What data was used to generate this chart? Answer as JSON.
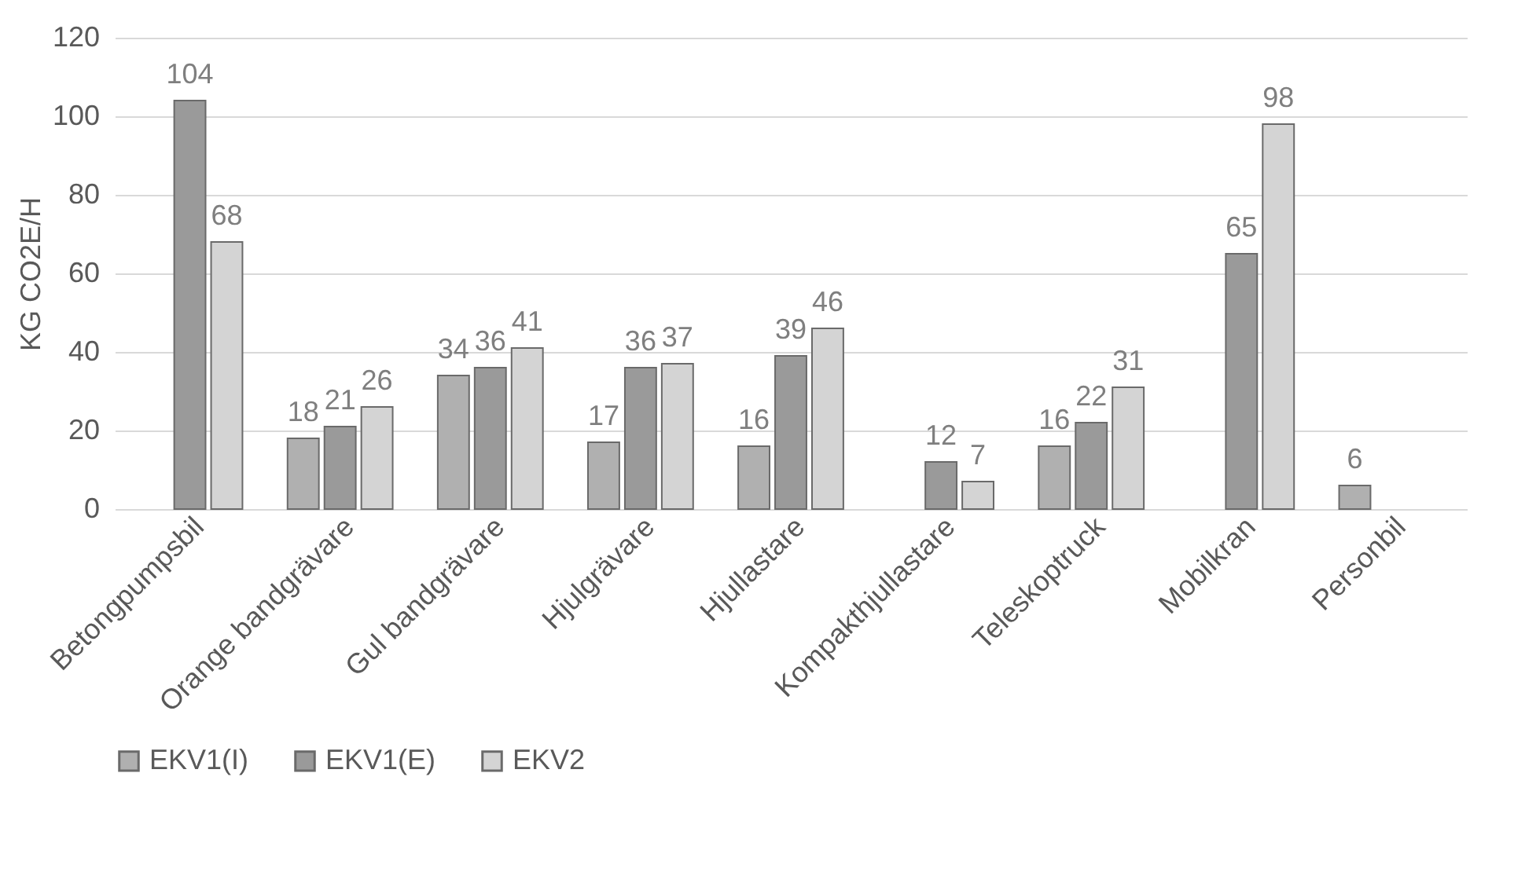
{
  "chart_data": {
    "type": "bar",
    "ylabel": "KG CO2E/H",
    "categories": [
      "Betongpumpsbil",
      "Orange bandgrävare",
      "Gul bandgrävare",
      "Hjulgrävare",
      "Hjullastare",
      "Kompakthjullastare",
      "Teleskoptruck",
      "Mobilkran",
      "Personbil"
    ],
    "series": [
      {
        "name": "EKV1(I)",
        "color": "#b0b0b0",
        "values": [
          null,
          18,
          34,
          17,
          16,
          null,
          16,
          null,
          6
        ]
      },
      {
        "name": "EKV1(E)",
        "color": "#9a9a9a",
        "values": [
          104,
          21,
          36,
          36,
          39,
          12,
          22,
          65,
          null
        ]
      },
      {
        "name": "EKV2",
        "color": "#d4d4d4",
        "values": [
          68,
          26,
          41,
          37,
          46,
          7,
          31,
          98,
          null
        ]
      }
    ],
    "ylim": [
      0,
      120
    ],
    "yticks": [
      0,
      20,
      40,
      60,
      80,
      100,
      120
    ],
    "grid": "y",
    "legend": "bottom",
    "data_labels": true
  }
}
